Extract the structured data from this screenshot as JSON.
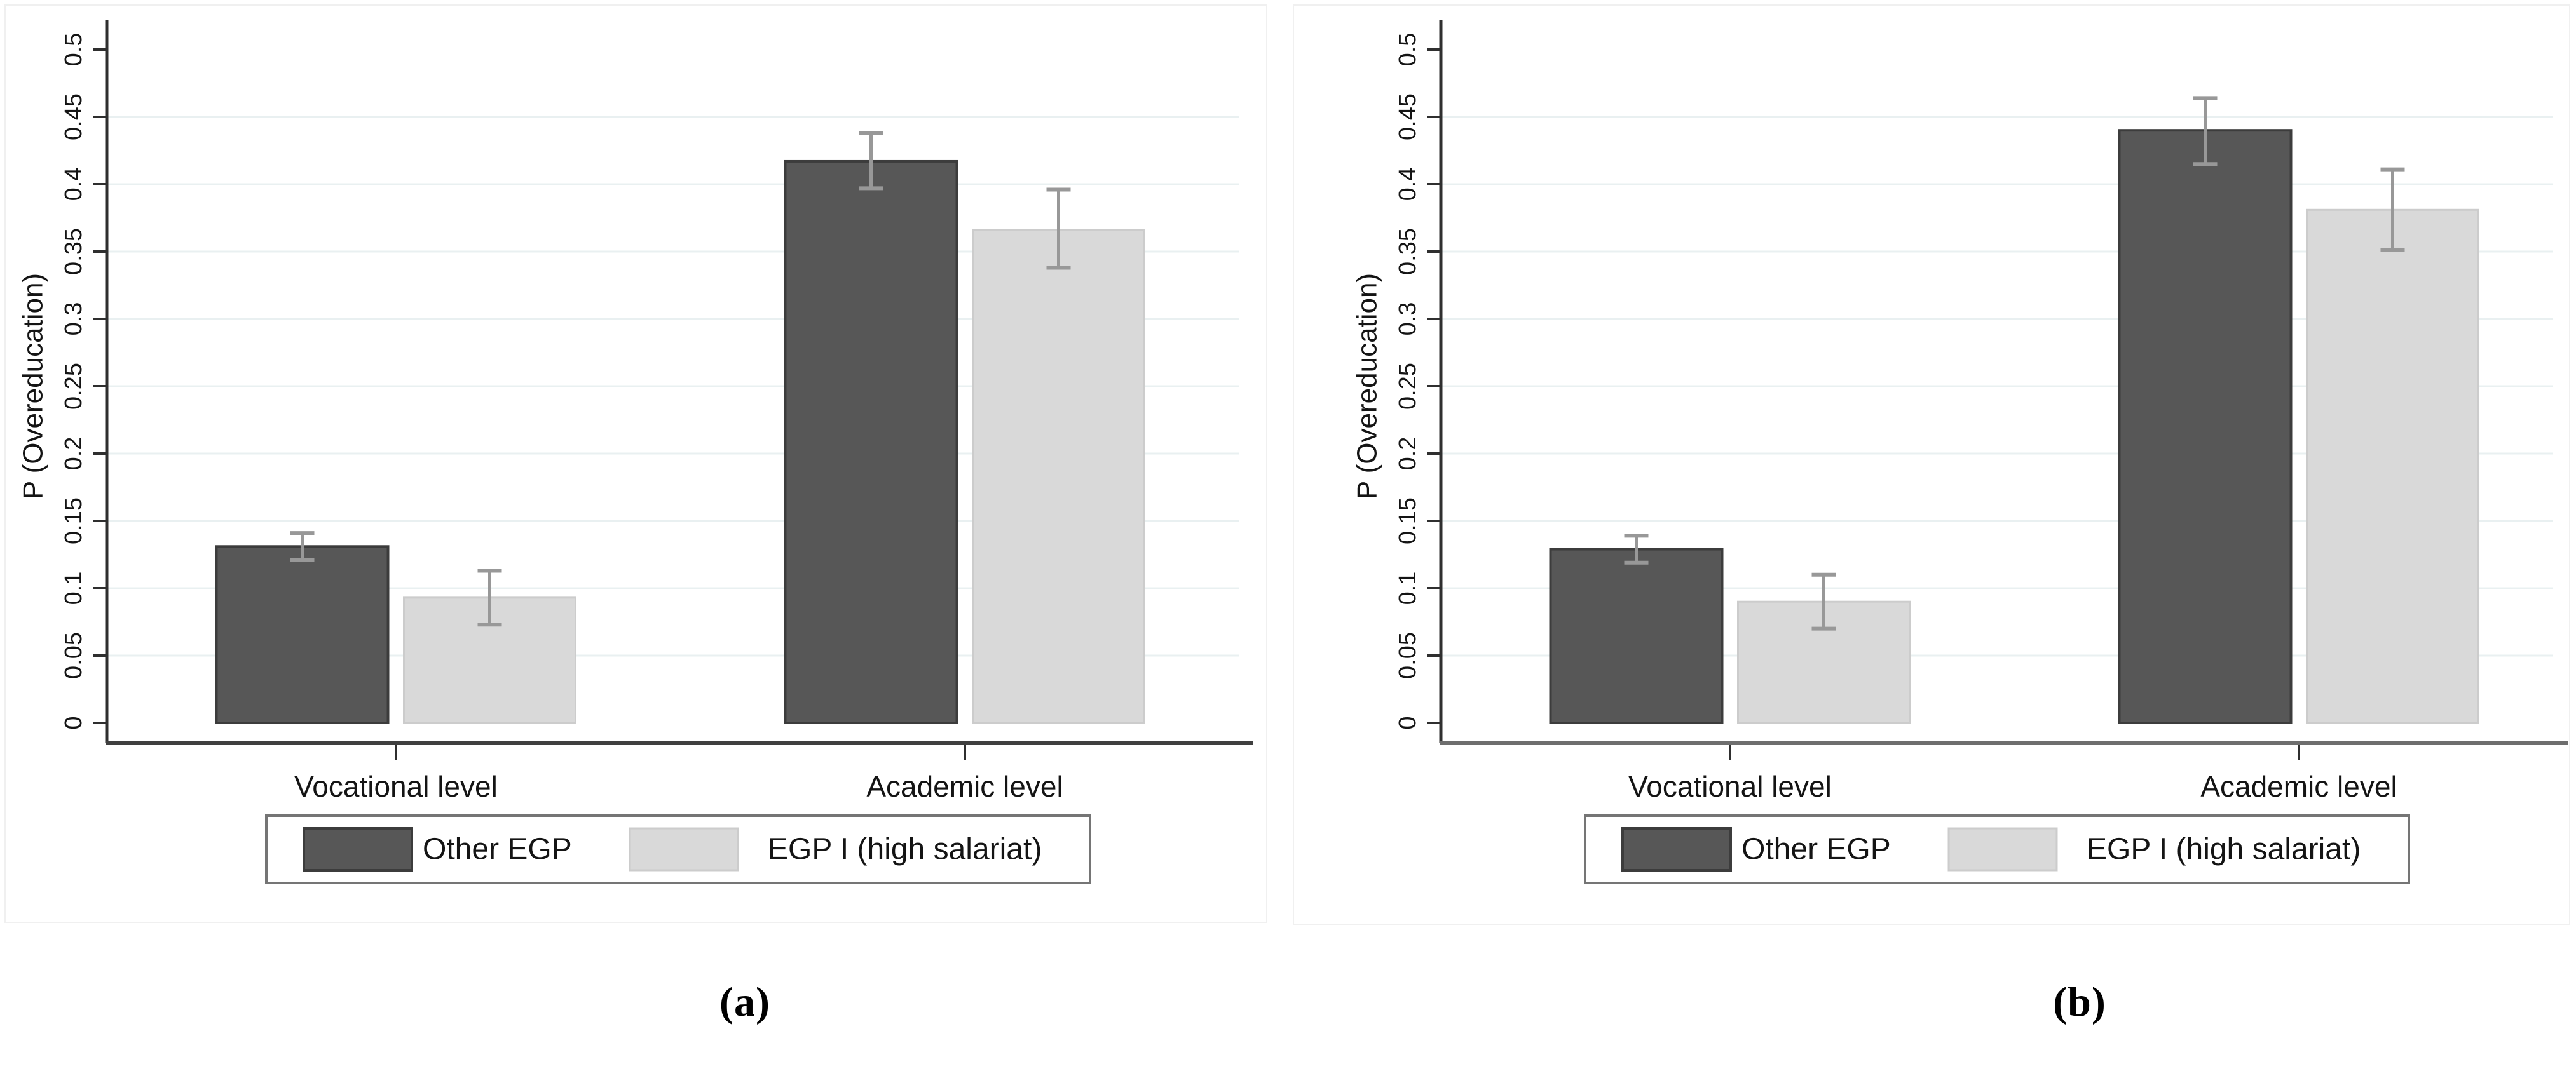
{
  "figure": {
    "captions": [
      "(a)",
      "(b)"
    ],
    "background": "#ffffff"
  },
  "chart_data": [
    {
      "type": "bar",
      "panel": "a",
      "title": "",
      "xlabel": "",
      "ylabel": "P (Overeducation)",
      "ylim": [
        0,
        0.5
      ],
      "ytick_step": 0.05,
      "ytick_labels": [
        "0",
        "0.05",
        "0.1",
        "0.15",
        "0.2",
        "0.25",
        "0.3",
        "0.35",
        "0.4",
        "0.45",
        "0.5"
      ],
      "grid": true,
      "legend_position": "bottom-framed",
      "categories": [
        "Vocational level",
        "Academic level"
      ],
      "series": [
        {
          "name": "Other EGP",
          "color": "#575757",
          "border": "#3c3c3c",
          "values": [
            0.131,
            0.417
          ],
          "ci_low": [
            0.121,
            0.397
          ],
          "ci_high": [
            0.141,
            0.438
          ]
        },
        {
          "name": "EGP I (high salariat)",
          "color": "#d9d9d9",
          "border": "#cccccc",
          "values": [
            0.093,
            0.366
          ],
          "ci_low": [
            0.073,
            0.338
          ],
          "ci_high": [
            0.113,
            0.396
          ]
        }
      ],
      "colors": {
        "grid": "#e9f0f1",
        "error_bar": "#989898",
        "y_axis": "#2f2f2f",
        "x_axis": "#3f3f3f",
        "frame": "#f0f0f0",
        "legend_border": "#757575",
        "text": "#141414"
      }
    },
    {
      "type": "bar",
      "panel": "b",
      "title": "",
      "xlabel": "",
      "ylabel": "P (Overeducation)",
      "ylim": [
        0,
        0.5
      ],
      "ytick_step": 0.05,
      "ytick_labels": [
        "0",
        "0.05",
        "0.1",
        "0.15",
        "0.2",
        "0.25",
        "0.3",
        "0.35",
        "0.4",
        "0.45",
        "0.5"
      ],
      "grid": true,
      "legend_position": "bottom-framed",
      "categories": [
        "Vocational level",
        "Academic level"
      ],
      "series": [
        {
          "name": "Other EGP",
          "color": "#575757",
          "border": "#3c3c3c",
          "values": [
            0.129,
            0.44
          ],
          "ci_low": [
            0.119,
            0.415
          ],
          "ci_high": [
            0.139,
            0.464
          ]
        },
        {
          "name": "EGP I (high salariat)",
          "color": "#d9d9d9",
          "border": "#cccccc",
          "values": [
            0.09,
            0.381
          ],
          "ci_low": [
            0.07,
            0.351
          ],
          "ci_high": [
            0.11,
            0.411
          ]
        }
      ],
      "colors": {
        "grid": "#e9f0f1",
        "error_bar": "#989898",
        "y_axis": "#2f2f2f",
        "x_axis": "#6e6e6e",
        "frame": "#f0f0f0",
        "legend_border": "#757575",
        "text": "#141414"
      }
    }
  ]
}
